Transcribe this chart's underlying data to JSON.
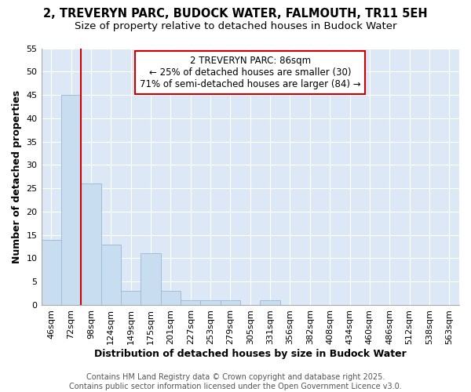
{
  "title_line1": "2, TREVERYN PARC, BUDOCK WATER, FALMOUTH, TR11 5EH",
  "title_line2": "Size of property relative to detached houses in Budock Water",
  "xlabel": "Distribution of detached houses by size in Budock Water",
  "ylabel": "Number of detached properties",
  "bar_labels": [
    "46sqm",
    "72sqm",
    "98sqm",
    "124sqm",
    "149sqm",
    "175sqm",
    "201sqm",
    "227sqm",
    "253sqm",
    "279sqm",
    "305sqm",
    "331sqm",
    "356sqm",
    "382sqm",
    "408sqm",
    "434sqm",
    "460sqm",
    "486sqm",
    "512sqm",
    "538sqm",
    "563sqm"
  ],
  "bar_values": [
    14,
    45,
    26,
    13,
    3,
    11,
    3,
    1,
    1,
    1,
    0,
    1,
    0,
    0,
    0,
    0,
    0,
    0,
    0,
    0,
    0
  ],
  "bar_color": "#c8ddf0",
  "bar_edge_color": "#a0bcd8",
  "vline_x": 1.5,
  "vline_color": "#cc0000",
  "annotation_text": "2 TREVERYN PARC: 86sqm\n← 25% of detached houses are smaller (30)\n71% of semi-detached houses are larger (84) →",
  "annotation_box_color": "#ffffff",
  "annotation_box_edge": "#cc0000",
  "ylim": [
    0,
    55
  ],
  "yticks": [
    0,
    5,
    10,
    15,
    20,
    25,
    30,
    35,
    40,
    45,
    50,
    55
  ],
  "footer_text": "Contains HM Land Registry data © Crown copyright and database right 2025.\nContains public sector information licensed under the Open Government Licence v3.0.",
  "background_color": "#ffffff",
  "plot_bg_color": "#dce8f5",
  "grid_color": "#ffffff",
  "title_fontsize": 10.5,
  "subtitle_fontsize": 9.5,
  "axis_label_fontsize": 9,
  "tick_fontsize": 8,
  "footer_fontsize": 7
}
